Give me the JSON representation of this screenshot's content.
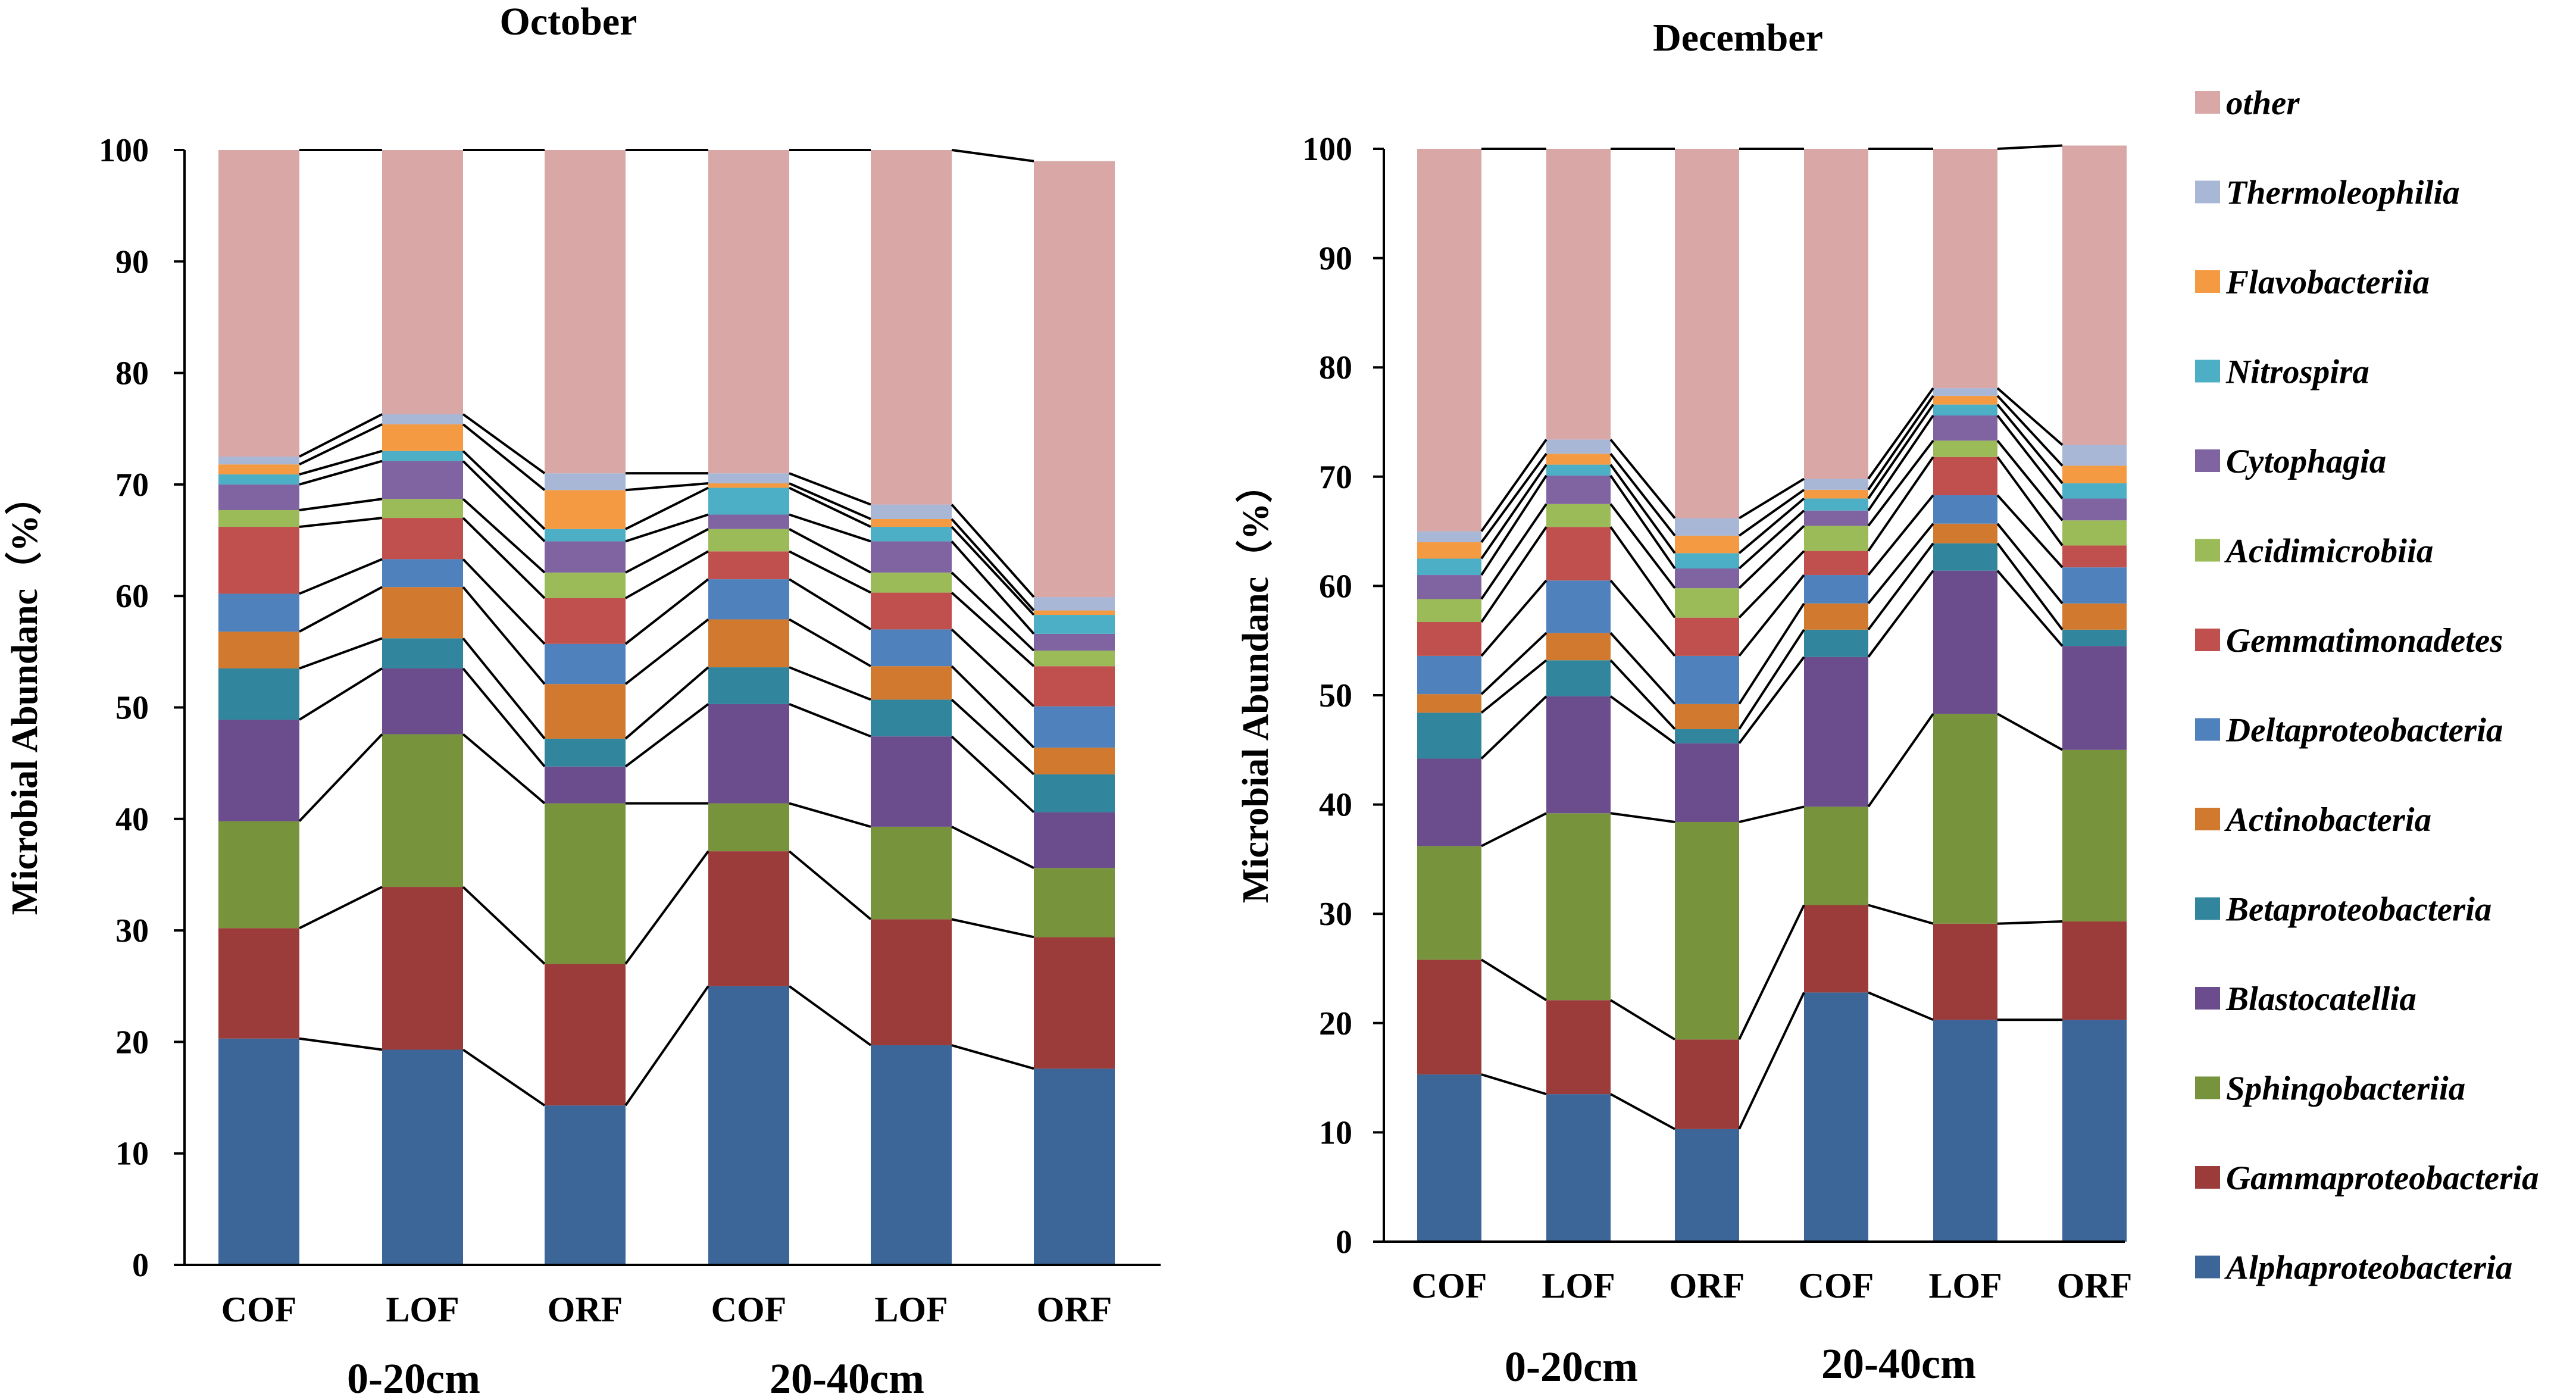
{
  "colors": {
    "other": "#d8a7a6",
    "Thermoleophilia": "#a9b7d6",
    "Flavobacteriia": "#f39a43",
    "Nitrospira": "#4cafc5",
    "Cytophagia": "#8064a2",
    "Acidimicrobiia": "#9bbb59",
    "Gemmatimonadetes": "#c0504d",
    "Deltaproteobacteria": "#4f81bd",
    "Actinobacteria": "#d0792f",
    "Betaproteobacteria": "#31859c",
    "Blastocatellia": "#6b4c8c",
    "Sphingobacteriia": "#77933c",
    "Gammaproteobacteria": "#9b3b3a",
    "Alphaproteobacteria": "#3c6697"
  },
  "legend": {
    "items": [
      "other",
      "Thermoleophilia",
      "Flavobacteriia",
      "Nitrospira",
      "Cytophagia",
      "Acidimicrobiia",
      "Gemmatimonadetes",
      "Deltaproteobacteria",
      "Actinobacteria",
      "Betaproteobacteria",
      "Blastocatellia",
      "Sphingobacteriia",
      "Gammaproteobacteria",
      "Alphaproteobacteria"
    ]
  },
  "chart_data": [
    {
      "type": "bar",
      "stacked": true,
      "title": "October",
      "xlabel": "",
      "ylabel": "Microbial Abundanc（%）",
      "ylim": [
        0,
        100
      ],
      "yticks": [
        "0",
        "10",
        "20",
        "30",
        "40",
        "50",
        "60",
        "70",
        "80",
        "90",
        "100"
      ],
      "categories": [
        "COF",
        "LOF",
        "ORF",
        "COF",
        "LOF",
        "ORF"
      ],
      "groups": [
        "0-20cm",
        "20-40cm"
      ],
      "series": [
        {
          "name": "Alphaproteobacteria",
          "values": [
            20.3,
            19.3,
            14.3,
            25.0,
            19.7,
            17.6
          ]
        },
        {
          "name": "Gammaproteobacteria",
          "values": [
            9.9,
            14.6,
            12.7,
            12.1,
            11.3,
            11.8
          ]
        },
        {
          "name": "Sphingobacteriia",
          "values": [
            9.6,
            13.7,
            14.4,
            4.3,
            8.3,
            6.2
          ]
        },
        {
          "name": "Blastocatellia",
          "values": [
            9.1,
            5.9,
            3.3,
            8.9,
            8.1,
            5.0
          ]
        },
        {
          "name": "Betaproteobacteria",
          "values": [
            4.6,
            2.7,
            2.5,
            3.3,
            3.3,
            3.4
          ]
        },
        {
          "name": "Actinobacteria",
          "values": [
            3.3,
            4.6,
            4.9,
            4.3,
            3.0,
            2.4
          ]
        },
        {
          "name": "Deltaproteobacteria",
          "values": [
            3.4,
            2.5,
            3.6,
            3.6,
            3.3,
            3.7
          ]
        },
        {
          "name": "Gemmatimonadetes",
          "values": [
            6.0,
            3.7,
            4.1,
            2.5,
            3.3,
            3.6
          ]
        },
        {
          "name": "Acidimicrobiia",
          "values": [
            1.5,
            1.7,
            2.3,
            2.0,
            1.8,
            1.4
          ]
        },
        {
          "name": "Cytophagia",
          "values": [
            2.3,
            3.4,
            2.8,
            1.3,
            2.8,
            1.5
          ]
        },
        {
          "name": "Nitrospira",
          "values": [
            0.9,
            0.9,
            1.1,
            2.4,
            1.3,
            1.7
          ]
        },
        {
          "name": "Flavobacteriia",
          "values": [
            0.9,
            2.4,
            3.5,
            0.4,
            0.7,
            0.4
          ]
        },
        {
          "name": "Thermoleophilia",
          "values": [
            0.7,
            0.9,
            1.5,
            0.9,
            1.3,
            1.2
          ]
        },
        {
          "name": "other",
          "values": [
            27.5,
            23.7,
            29.0,
            29.0,
            31.8,
            39.1
          ]
        }
      ]
    },
    {
      "type": "bar",
      "stacked": true,
      "title": "December",
      "xlabel": "",
      "ylabel": "Microbial Abundanc（%）",
      "ylim": [
        0,
        100
      ],
      "yticks": [
        "0",
        "10",
        "20",
        "30",
        "40",
        "50",
        "60",
        "70",
        "80",
        "90",
        "100"
      ],
      "categories": [
        "COF",
        "LOF",
        "ORF",
        "COF",
        "LOF",
        "ORF"
      ],
      "groups": [
        "0-20cm",
        "20-40cm"
      ],
      "series": [
        {
          "name": "Alphaproteobacteria",
          "values": [
            15.3,
            13.5,
            10.3,
            22.8,
            20.3,
            20.3
          ]
        },
        {
          "name": "Gammaproteobacteria",
          "values": [
            10.5,
            8.6,
            8.2,
            8.0,
            8.8,
            9.0
          ]
        },
        {
          "name": "Sphingobacteriia",
          "values": [
            10.4,
            17.1,
            19.9,
            9.0,
            19.2,
            15.7
          ]
        },
        {
          "name": "Blastocatellia",
          "values": [
            8.0,
            10.7,
            7.2,
            13.7,
            13.1,
            9.5
          ]
        },
        {
          "name": "Betaproteobacteria",
          "values": [
            4.2,
            3.3,
            1.3,
            2.5,
            2.5,
            1.5
          ]
        },
        {
          "name": "Actinobacteria",
          "values": [
            1.7,
            2.5,
            2.3,
            2.4,
            1.8,
            2.4
          ]
        },
        {
          "name": "Deltaproteobacteria",
          "values": [
            3.5,
            4.8,
            4.4,
            2.6,
            2.6,
            3.3
          ]
        },
        {
          "name": "Gemmatimonadetes",
          "values": [
            3.1,
            4.9,
            3.5,
            2.2,
            3.5,
            2.0
          ]
        },
        {
          "name": "Acidimicrobiia",
          "values": [
            2.1,
            2.1,
            2.7,
            2.3,
            1.5,
            2.3
          ]
        },
        {
          "name": "Cytophagia",
          "values": [
            2.2,
            2.6,
            1.8,
            1.4,
            2.3,
            2.0
          ]
        },
        {
          "name": "Nitrospira",
          "values": [
            1.5,
            1.0,
            1.4,
            1.1,
            1.0,
            1.4
          ]
        },
        {
          "name": "Flavobacteriia",
          "values": [
            1.5,
            1.0,
            1.6,
            0.8,
            0.8,
            1.6
          ]
        },
        {
          "name": "Thermoleophilia",
          "values": [
            1.0,
            1.3,
            1.6,
            1.0,
            0.7,
            1.9
          ]
        },
        {
          "name": "other",
          "values": [
            35.0,
            26.6,
            33.8,
            30.2,
            21.9,
            27.4
          ]
        }
      ]
    }
  ]
}
